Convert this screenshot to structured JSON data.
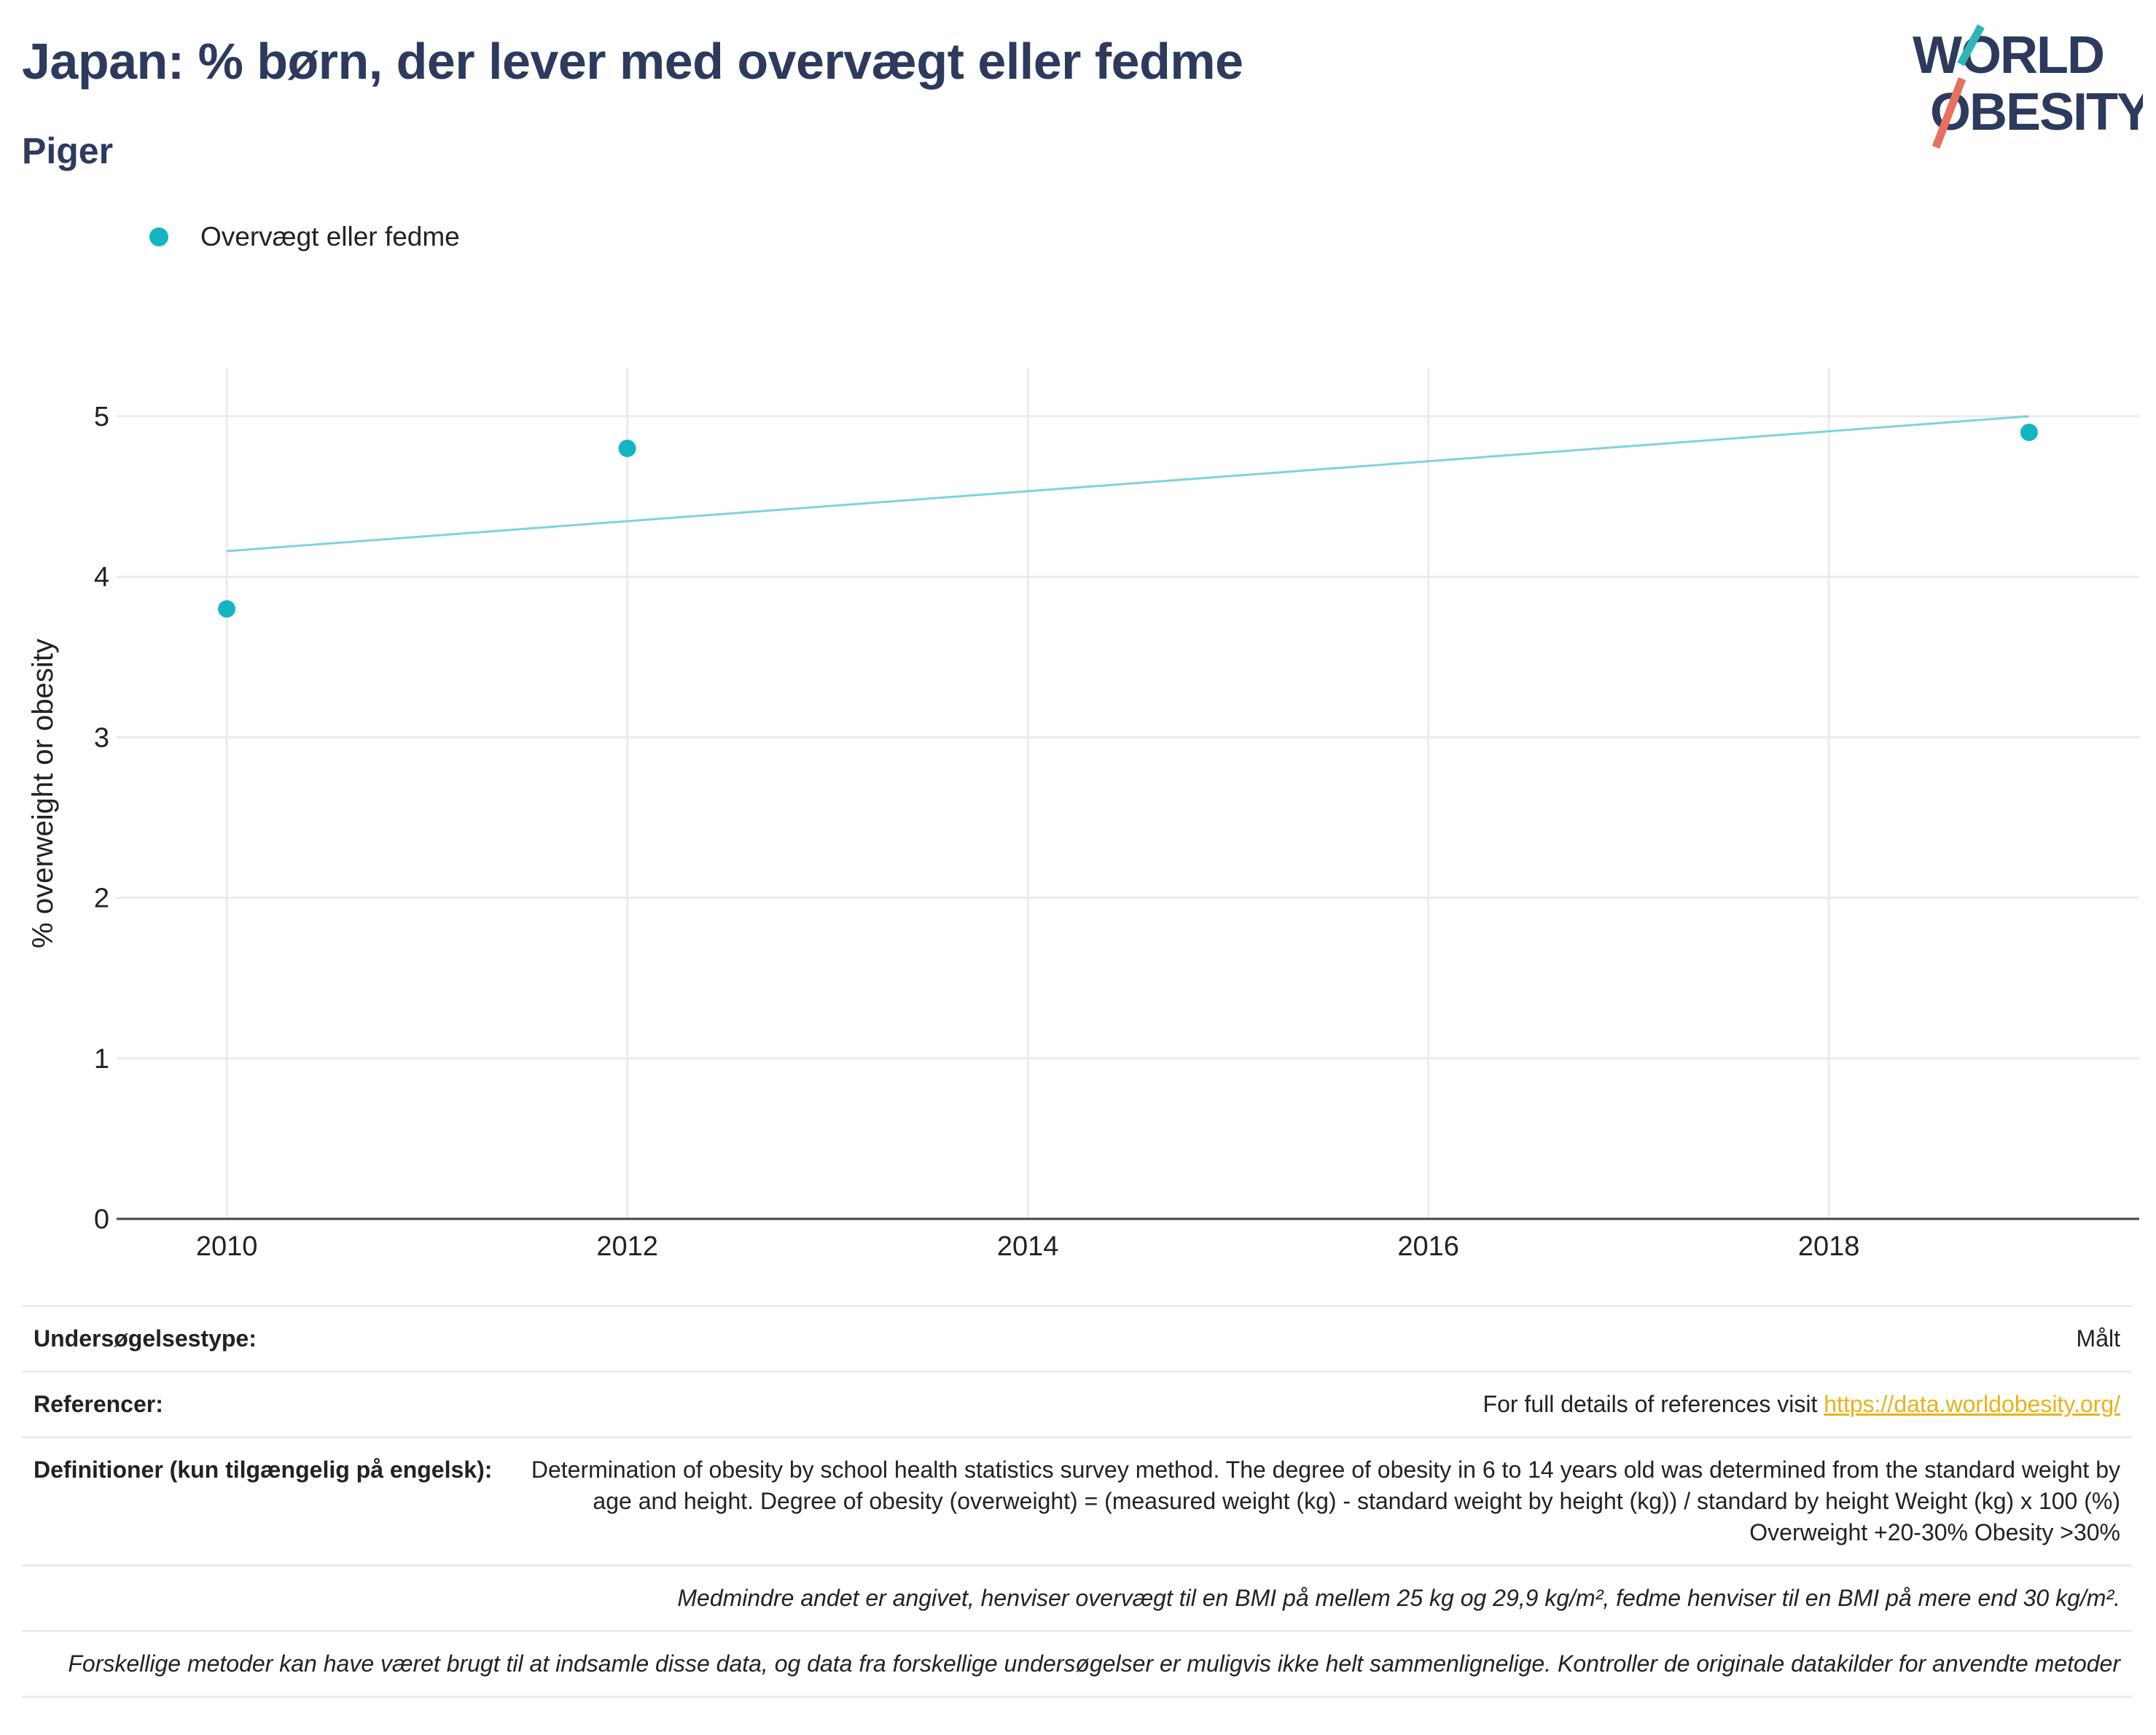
{
  "header": {
    "title": "Japan: % børn, der lever med overvægt eller fedme",
    "subtitle": "Piger"
  },
  "logo": {
    "line1": "WORLD",
    "line2": "OBESITY"
  },
  "colors": {
    "title": "#2d3a5e",
    "series": "#14b5c3",
    "trend": "#7fd3d8",
    "link": "#e8b21a",
    "logo_teal": "#2fb5b7",
    "logo_red": "#e8705e"
  },
  "legend": {
    "items": [
      {
        "label": "Overvægt eller fedme",
        "marker": "dot"
      }
    ]
  },
  "chart_data": {
    "type": "scatter",
    "title": "Japan: % børn, der lever med overvægt eller fedme",
    "subtitle": "Piger",
    "ylabel": "% overweight or obesity",
    "xlabel": "",
    "x_ticks": [
      "2010",
      "2012",
      "2014",
      "2016",
      "2018"
    ],
    "y_ticks": [
      "0",
      "1",
      "2",
      "3",
      "4",
      "5"
    ],
    "ylim": [
      0,
      5.3
    ],
    "xlim": [
      2009.45,
      2019.55
    ],
    "grid": true,
    "legend_position": "top-left",
    "series": [
      {
        "name": "Overvægt eller fedme",
        "x": [
          2010,
          2012,
          2019
        ],
        "y": [
          3.8,
          4.8,
          4.9
        ]
      }
    ],
    "trendline": {
      "x": [
        2010,
        2019
      ],
      "y": [
        4.16,
        5.0
      ]
    }
  },
  "info": {
    "survey_type_label": "Undersøgelsestype:",
    "survey_type_value": "Målt",
    "references_label": "Referencer:",
    "references_text": "For full details of references visit ",
    "references_link": "https://data.worldobesity.org/",
    "definitions_label": "Definitioner (kun tilgængelig på engelsk):",
    "definitions_text": "Determination of obesity by school health statistics survey method. The degree of obesity in 6 to 14 years old was determined from the standard weight by age and height. Degree of obesity (overweight) = (measured weight (kg) - standard weight by height (kg)) / standard by height Weight (kg) x 100 (%) Overweight +20-30% Obesity >30%",
    "bmi_note": "Medmindre andet er angivet, henviser overvægt til en BMI på mellem 25 kg og 29,9 kg/m², fedme henviser til en BMI på mere end 30 kg/m².",
    "methods_note": "Forskellige metoder kan have været brugt til at indsamle disse data, og data fra forskellige undersøgelser er muligvis ikke helt sammenlignelige. Kontroller de originale datakilder for anvendte metoder"
  }
}
